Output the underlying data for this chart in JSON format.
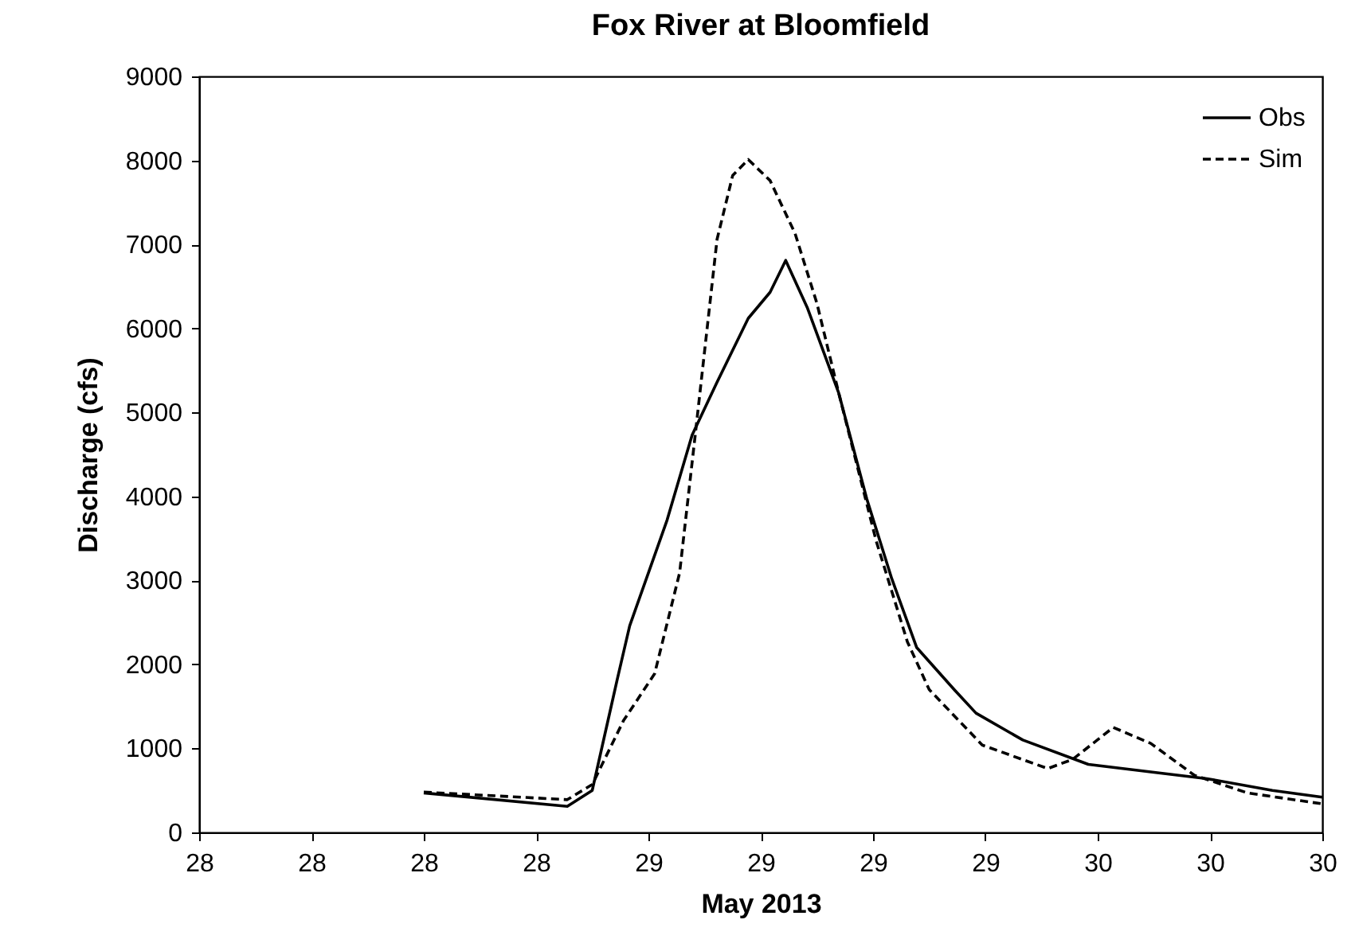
{
  "chart_data": {
    "type": "line",
    "title": "Fox River at Bloomfield",
    "xlabel": "May 2013",
    "ylabel": "Discharge (cfs)",
    "xlim": [
      "2013-05-28T00:00",
      "2013-05-30T12:00"
    ],
    "xticks": [
      {
        "value": "2013-05-28T00:00",
        "label": "28"
      },
      {
        "value": "2013-05-28T06:00",
        "label": "28"
      },
      {
        "value": "2013-05-28T12:00",
        "label": "28"
      },
      {
        "value": "2013-05-28T18:00",
        "label": "28"
      },
      {
        "value": "2013-05-29T00:00",
        "label": "29"
      },
      {
        "value": "2013-05-29T06:00",
        "label": "29"
      },
      {
        "value": "2013-05-29T12:00",
        "label": "29"
      },
      {
        "value": "2013-05-29T18:00",
        "label": "29"
      },
      {
        "value": "2013-05-30T00:00",
        "label": "30"
      },
      {
        "value": "2013-05-30T06:00",
        "label": "30"
      },
      {
        "value": "2013-05-30T12:00",
        "label": "30"
      }
    ],
    "ylim": [
      0,
      9000
    ],
    "yticks": [
      0,
      1000,
      2000,
      3000,
      4000,
      5000,
      6000,
      7000,
      8000,
      9000
    ],
    "grid": false,
    "legend": "top right",
    "marker": "none",
    "series": [
      {
        "name": "Obs",
        "color": "#000000",
        "line_style": "solid",
        "x": [
          "2013-05-28T12:00",
          "2013-05-28T19:40",
          "2013-05-28T21:00",
          "2013-05-28T22:20",
          "2013-05-28T23:00",
          "2013-05-29T00:00",
          "2013-05-29T01:00",
          "2013-05-29T02:20",
          "2013-05-29T03:40",
          "2013-05-29T05:20",
          "2013-05-29T06:30",
          "2013-05-29T07:20",
          "2013-05-29T08:30",
          "2013-05-29T10:10",
          "2013-05-29T11:40",
          "2013-05-29T13:00",
          "2013-05-29T14:20",
          "2013-05-29T16:20",
          "2013-05-29T17:30",
          "2013-05-29T20:00",
          "2013-05-29T23:30",
          "2013-05-30T02:50",
          "2013-05-30T05:50",
          "2013-05-30T09:20",
          "2013-05-30T12:00"
        ],
        "values": [
          470,
          310,
          500,
          1820,
          2460,
          3090,
          3720,
          4730,
          5360,
          6120,
          6430,
          6810,
          6240,
          5230,
          3970,
          3020,
          2200,
          1700,
          1420,
          1100,
          810,
          720,
          640,
          500,
          420
        ]
      },
      {
        "name": "Sim",
        "color": "#000000",
        "line_style": "dashed",
        "x": [
          "2013-05-28T12:00",
          "2013-05-28T19:40",
          "2013-05-28T21:00",
          "2013-05-28T22:40",
          "2013-05-29T00:20",
          "2013-05-29T01:40",
          "2013-05-29T02:30",
          "2013-05-29T03:40",
          "2013-05-29T04:30",
          "2013-05-29T05:20",
          "2013-05-29T06:30",
          "2013-05-29T07:50",
          "2013-05-29T09:00",
          "2013-05-29T10:10",
          "2013-05-29T12:10",
          "2013-05-29T13:50",
          "2013-05-29T15:00",
          "2013-05-29T17:50",
          "2013-05-29T21:20",
          "2013-05-29T22:40",
          "2013-05-30T00:50",
          "2013-05-30T02:50",
          "2013-05-30T05:10",
          "2013-05-30T08:00",
          "2013-05-30T12:00"
        ],
        "values": [
          480,
          390,
          570,
          1330,
          1890,
          3090,
          4730,
          7060,
          7820,
          8010,
          7760,
          7130,
          6300,
          5230,
          3470,
          2270,
          1700,
          1040,
          760,
          870,
          1250,
          1060,
          680,
          470,
          340
        ]
      }
    ]
  }
}
